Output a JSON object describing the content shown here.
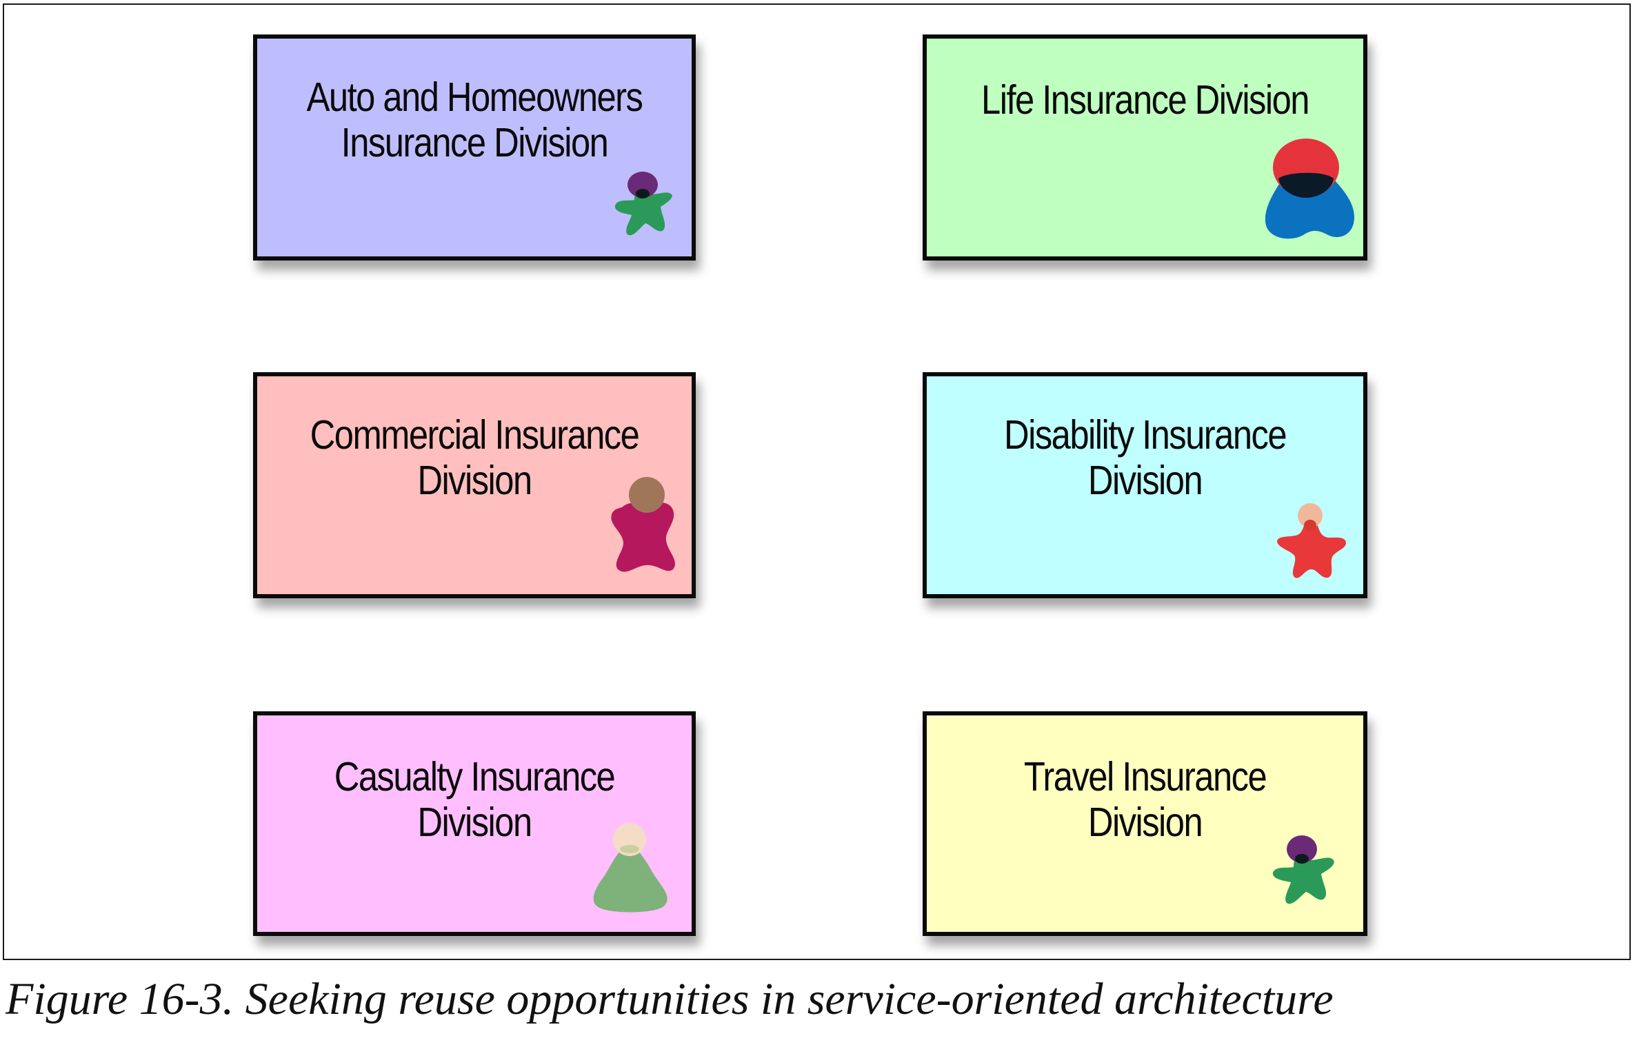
{
  "diagram": {
    "divisions": [
      {
        "label": "Auto and Homeowners\nInsurance Division",
        "fill": "#bebeff",
        "figure": "green-star-person-icon",
        "head_color": "#6a2a78",
        "body_color": "#2b9a58"
      },
      {
        "label": "Life Insurance Division",
        "fill": "#bfffc0",
        "figure": "blue-blob-person-icon",
        "head_color": "#e5333b",
        "body_color": "#0b72c0"
      },
      {
        "label": "Commercial Insurance\nDivision",
        "fill": "#ffbfbe",
        "figure": "magenta-person-icon",
        "head_color": "#a0765a",
        "body_color": "#b5185c"
      },
      {
        "label": "Disability Insurance\nDivision",
        "fill": "#bfffff",
        "figure": "red-star-person-icon",
        "head_color": "#f0b89a",
        "body_color": "#e8383a"
      },
      {
        "label": "Casualty Insurance\nDivision",
        "fill": "#ffbfff",
        "figure": "green-triangle-person-icon",
        "head_color": "#f5dcc6",
        "body_color": "#7fb27a"
      },
      {
        "label": "Travel Insurance\nDivision",
        "fill": "#ffffc0",
        "figure": "green-star-person-icon",
        "head_color": "#6a2a78",
        "body_color": "#2b9a58"
      }
    ]
  },
  "caption": "Figure 16-3. Seeking reuse opportunities in service-oriented architecture"
}
